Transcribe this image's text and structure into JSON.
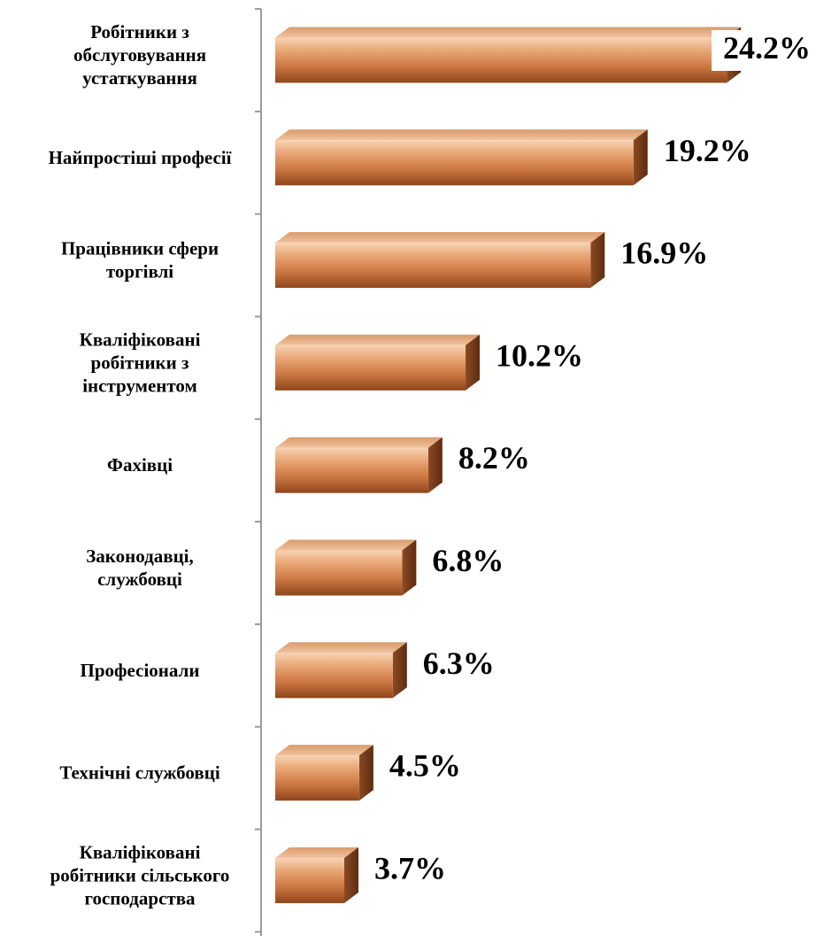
{
  "chart_data": {
    "type": "bar",
    "orientation": "horizontal",
    "title": "",
    "xlabel": "",
    "ylabel": "",
    "categories": [
      [
        "Робітники з",
        "обслуговування",
        "устаткування"
      ],
      [
        "Найпростіші професії"
      ],
      [
        "Працівники сфери",
        "торгівлі"
      ],
      [
        "Кваліфіковані",
        "робітники з",
        "інструментом"
      ],
      [
        "Фахівці"
      ],
      [
        "Законодавці,",
        "службовці"
      ],
      [
        "Професіонали"
      ],
      [
        "Технічні службовці"
      ],
      [
        "Кваліфіковані",
        "робітники сільського",
        "господарства"
      ]
    ],
    "values": [
      24.2,
      19.2,
      16.9,
      10.2,
      8.2,
      6.8,
      6.3,
      4.5,
      3.7
    ],
    "value_labels": [
      "24.2%",
      "19.2%",
      "16.9%",
      "10.2%",
      "8.2%",
      "6.8%",
      "6.3%",
      "4.5%",
      "3.7%"
    ],
    "xlim": [
      0,
      25
    ],
    "grid": false,
    "legend": "none",
    "colors": {
      "bar_front_light": "#f6c9a4",
      "bar_front_mid": "#dd8a57",
      "bar_front_dark": "#9c4f22",
      "bar_top": "#eab48c",
      "bar_side": "#7a3d18",
      "axis": "#9a9a9a"
    }
  }
}
